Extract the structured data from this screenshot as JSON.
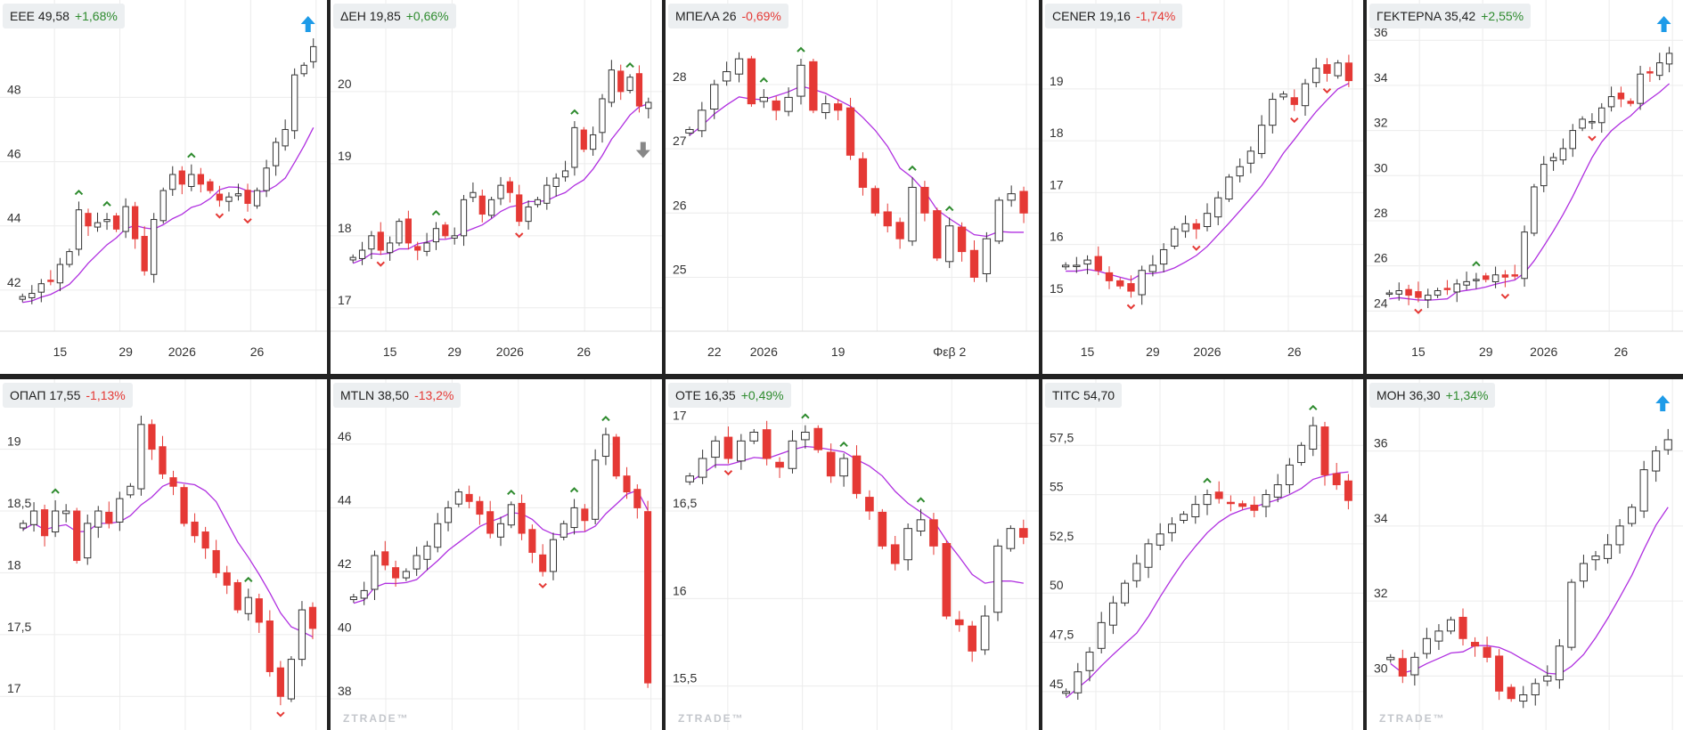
{
  "colors": {
    "up_fill": "#ffffff",
    "up_border": "#333333",
    "down": "#e53935",
    "ma": "#b030e0",
    "grid": "#ececec",
    "up_marker": "#2e8b2e",
    "down_marker": "#e53935",
    "arrow_up": "#1e9be8",
    "arrow_down": "#888888"
  },
  "watermark": "ZTRADE™",
  "panels": [
    {
      "symbol": "ΕΕΕ",
      "price": "49,58",
      "change": "+1,68%",
      "dir": "up",
      "ylim": [
        41,
        50.2
      ],
      "yticks": [
        "42",
        "44",
        "46",
        "48"
      ],
      "yvals": [
        42,
        44,
        46,
        48
      ],
      "xticks": [
        {
          "label": "15",
          "i": 4
        },
        {
          "label": "29",
          "i": 11
        },
        {
          "label": "2026",
          "i": 17
        },
        {
          "label": "26",
          "i": 25
        }
      ],
      "arrow": "up",
      "watermark": false,
      "closes": [
        41.8,
        41.9,
        42.2,
        42.3,
        42.8,
        43.2,
        44.5,
        44.0,
        44.1,
        44.2,
        43.9,
        44.6,
        43.6,
        42.6,
        44.2,
        45.1,
        45.6,
        45.3,
        45.6,
        45.3,
        45.1,
        44.8,
        44.9,
        45.0,
        44.7,
        45.1,
        45.8,
        46.6,
        47.0,
        48.7,
        49.0,
        49.58
      ]
    },
    {
      "symbol": "ΔΕΗ",
      "price": "19,85",
      "change": "+0,66%",
      "dir": "up",
      "ylim": [
        16.8,
        20.9
      ],
      "yticks": [
        "17",
        "18",
        "19",
        "20"
      ],
      "yvals": [
        17,
        18,
        19,
        20
      ],
      "xticks": [
        {
          "label": "15",
          "i": 4
        },
        {
          "label": "29",
          "i": 11
        },
        {
          "label": "2026",
          "i": 17
        },
        {
          "label": "26",
          "i": 25
        }
      ],
      "arrow": "down",
      "watermark": false,
      "closes": [
        17.7,
        17.8,
        18.0,
        17.8,
        17.9,
        18.2,
        17.9,
        17.8,
        17.9,
        18.1,
        18.0,
        18.0,
        18.5,
        18.6,
        18.3,
        18.5,
        18.7,
        18.6,
        18.2,
        18.4,
        18.5,
        18.7,
        18.8,
        18.9,
        19.5,
        19.2,
        19.4,
        19.9,
        20.3,
        20.0,
        20.2,
        19.8,
        19.85
      ]
    },
    {
      "symbol": "ΜΠΕΛΑ",
      "price": "26",
      "change": "-0,69%",
      "dir": "dn",
      "ylim": [
        24.3,
        28.9
      ],
      "yticks": [
        "25",
        "26",
        "27",
        "28"
      ],
      "yvals": [
        25,
        26,
        27,
        28
      ],
      "xticks": [
        {
          "label": "22",
          "i": 2
        },
        {
          "label": "2026",
          "i": 6
        },
        {
          "label": "19",
          "i": 12
        },
        {
          "label": "Φεβ 2",
          "i": 21
        }
      ],
      "arrow": "",
      "watermark": false,
      "closes": [
        27.3,
        27.6,
        28.0,
        28.2,
        28.4,
        27.7,
        27.8,
        27.6,
        27.8,
        28.3,
        27.6,
        27.7,
        27.6,
        26.9,
        26.4,
        26.0,
        25.8,
        25.6,
        26.4,
        26.0,
        25.3,
        25.8,
        25.4,
        25.0,
        25.6,
        26.2,
        26.3,
        26.0
      ]
    },
    {
      "symbol": "CENER",
      "price": "19,16",
      "change": "-1,74%",
      "dir": "dn",
      "ylim": [
        14.5,
        20.2
      ],
      "yticks": [
        "15",
        "16",
        "17",
        "18",
        "19"
      ],
      "yvals": [
        15,
        16,
        17,
        18,
        19
      ],
      "xticks": [
        {
          "label": "15",
          "i": 2
        },
        {
          "label": "29",
          "i": 8
        },
        {
          "label": "2026",
          "i": 13
        },
        {
          "label": "26",
          "i": 21
        }
      ],
      "arrow": "",
      "watermark": false,
      "closes": [
        15.6,
        15.6,
        15.7,
        15.5,
        15.3,
        15.2,
        15.1,
        15.5,
        15.6,
        15.9,
        16.3,
        16.4,
        16.3,
        16.6,
        16.9,
        17.3,
        17.5,
        17.8,
        18.3,
        18.8,
        18.9,
        18.7,
        19.1,
        19.4,
        19.3,
        19.5,
        19.16
      ]
    },
    {
      "symbol": "ΓΕΚΤΕΡΝΑ",
      "price": "35,42",
      "change": "+2,55%",
      "dir": "up",
      "ylim": [
        23.5,
        36.6
      ],
      "yticks": [
        "24",
        "26",
        "28",
        "30",
        "32",
        "34",
        "36"
      ],
      "yvals": [
        24,
        26,
        28,
        30,
        32,
        34,
        36
      ],
      "xticks": [
        {
          "label": "15",
          "i": 3
        },
        {
          "label": "29",
          "i": 10
        },
        {
          "label": "2026",
          "i": 16
        },
        {
          "label": "26",
          "i": 24
        }
      ],
      "arrow": "up",
      "watermark": false,
      "closes": [
        24.8,
        24.9,
        24.7,
        24.6,
        24.7,
        24.9,
        25.0,
        25.2,
        25.3,
        25.4,
        25.4,
        25.6,
        25.5,
        25.6,
        27.5,
        29.5,
        30.5,
        30.8,
        31.2,
        32.0,
        32.5,
        32.4,
        33.0,
        33.5,
        33.4,
        33.2,
        34.5,
        34.6,
        35.0,
        35.42
      ]
    },
    {
      "symbol": "ΟΠΑΠ",
      "price": "17,55",
      "change": "-1,13%",
      "dir": "dn",
      "ylim": [
        16.8,
        19.35
      ],
      "yticks": [
        "17",
        "17,5",
        "18",
        "18,5",
        "19"
      ],
      "yvals": [
        17,
        17.5,
        18,
        18.5,
        19
      ],
      "xticks": [],
      "arrow": "",
      "watermark": false,
      "closes": [
        18.4,
        18.5,
        18.3,
        18.5,
        18.5,
        18.1,
        18.4,
        18.5,
        18.4,
        18.6,
        18.7,
        19.2,
        19.0,
        18.8,
        18.7,
        18.4,
        18.3,
        18.2,
        18.0,
        17.9,
        17.7,
        17.8,
        17.6,
        17.2,
        17.0,
        17.3,
        17.7,
        17.55
      ]
    },
    {
      "symbol": "MTLN",
      "price": "38,50",
      "change": "-13,2%",
      "dir": "dn",
      "ylim": [
        37.3,
        47.2
      ],
      "yticks": [
        "38",
        "40",
        "42",
        "44",
        "46"
      ],
      "yvals": [
        38,
        40,
        42,
        44,
        46
      ],
      "xticks": [],
      "arrow": "",
      "watermark": true,
      "closes": [
        41.2,
        41.4,
        42.5,
        42.2,
        41.8,
        42.0,
        42.5,
        42.8,
        43.5,
        44.0,
        44.5,
        44.2,
        43.8,
        43.2,
        43.5,
        44.1,
        43.2,
        42.6,
        42.0,
        43.0,
        43.5,
        44.0,
        43.6,
        45.5,
        46.3,
        45.0,
        44.5,
        44.0,
        38.5
      ]
    },
    {
      "symbol": "ΟΤΕ",
      "price": "16,35",
      "change": "+0,49%",
      "dir": "up",
      "ylim": [
        15.3,
        17.1
      ],
      "yticks": [
        "15,5",
        "16",
        "16,5",
        "17"
      ],
      "yvals": [
        15.5,
        16,
        16.5,
        17
      ],
      "xticks": [],
      "arrow": "",
      "watermark": true,
      "closes": [
        16.7,
        16.8,
        16.9,
        16.8,
        16.9,
        16.95,
        16.8,
        16.75,
        16.9,
        16.95,
        16.85,
        16.7,
        16.8,
        16.6,
        16.5,
        16.3,
        16.2,
        16.4,
        16.45,
        16.3,
        15.9,
        15.85,
        15.7,
        15.9,
        16.3,
        16.4,
        16.35
      ]
    },
    {
      "symbol": "TITC",
      "price": "54,70",
      "change": "",
      "dir": "nt",
      "ylim": [
        43.5,
        59.5
      ],
      "yticks": [
        "45",
        "47,5",
        "50",
        "52,5",
        "55",
        "57,5"
      ],
      "yvals": [
        45,
        47.5,
        50,
        52.5,
        55,
        57.5
      ],
      "xticks": [],
      "arrow": "",
      "watermark": false,
      "closes": [
        45,
        46,
        47,
        48.5,
        49.5,
        50.5,
        51.5,
        52.5,
        53,
        53.5,
        54,
        54.5,
        55,
        54.8,
        54.6,
        54.4,
        54.2,
        55,
        55.5,
        56.5,
        57.5,
        58.5,
        56,
        55.5,
        54.7
      ]
    },
    {
      "symbol": "ΜΟΗ",
      "price": "36,30",
      "change": "+1,34%",
      "dir": "up",
      "ylim": [
        28.8,
        37.2
      ],
      "yticks": [
        "30",
        "32",
        "34",
        "36"
      ],
      "yvals": [
        30,
        32,
        34,
        36
      ],
      "xticks": [],
      "arrow": "up",
      "watermark": true,
      "closes": [
        30.5,
        30.0,
        30.5,
        31.0,
        31.2,
        31.5,
        31.0,
        30.8,
        30.5,
        29.6,
        29.4,
        29.5,
        29.8,
        30.0,
        30.8,
        32.5,
        33.0,
        33.2,
        33.5,
        34.0,
        34.5,
        35.5,
        36.0,
        36.3
      ]
    }
  ]
}
